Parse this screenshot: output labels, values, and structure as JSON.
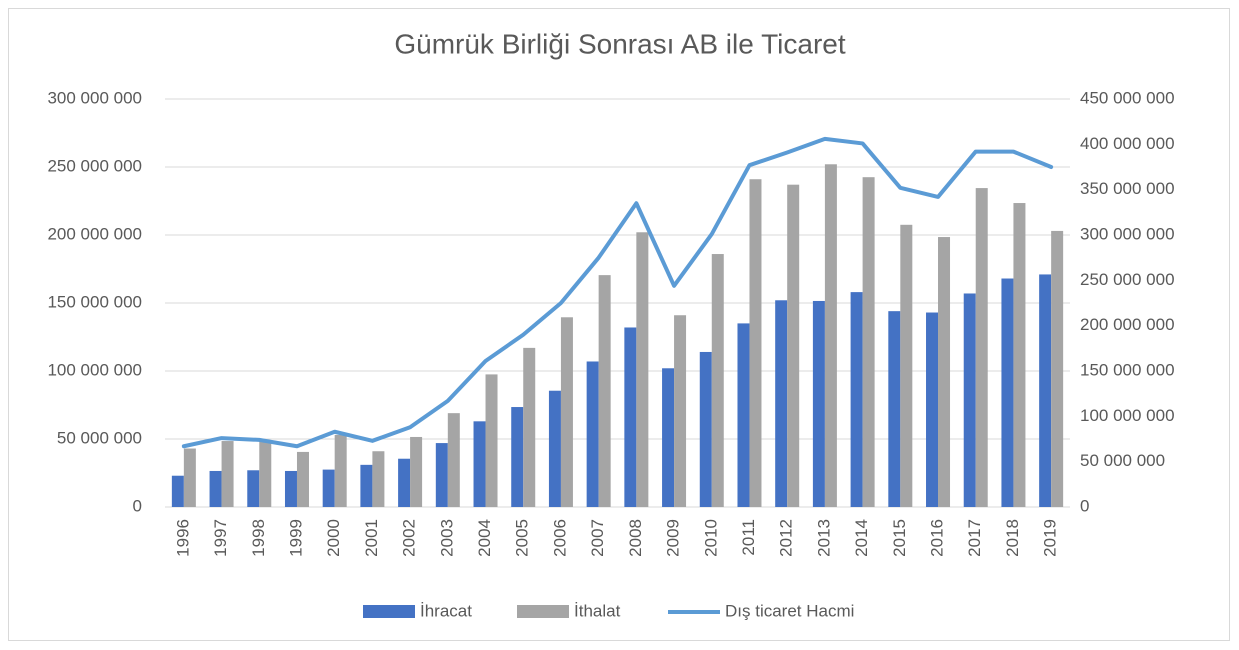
{
  "chart_data": {
    "type": "bar-line",
    "title": "Gümrük Birliği Sonrası AB ile Ticaret",
    "categories": [
      "1996",
      "1997",
      "1998",
      "1999",
      "2000",
      "2001",
      "2002",
      "2003",
      "2004",
      "2005",
      "2006",
      "2007",
      "2008",
      "2009",
      "2010",
      "2011",
      "2012",
      "2013",
      "2014",
      "2015",
      "2016",
      "2017",
      "2018",
      "2019"
    ],
    "series": [
      {
        "name": "İhracat",
        "color": "#4472c4",
        "type": "bar",
        "values": [
          23000000,
          26500000,
          27000000,
          26500000,
          27500000,
          31000000,
          35500000,
          47000000,
          63000000,
          73500000,
          85500000,
          107000000,
          132000000,
          102000000,
          114000000,
          135000000,
          152000000,
          151500000,
          158000000,
          144000000,
          143000000,
          157000000,
          168000000,
          171000000
        ]
      },
      {
        "name": "İthalat",
        "color": "#a5a5a5",
        "type": "bar",
        "values": [
          43000000,
          48500000,
          48500000,
          40500000,
          53000000,
          41000000,
          51500000,
          69000000,
          97500000,
          117000000,
          139500000,
          170500000,
          202000000,
          141000000,
          186000000,
          241000000,
          237000000,
          252000000,
          242500000,
          207500000,
          198500000,
          234500000,
          223500000,
          203000000
        ]
      },
      {
        "name": "Dış ticaret Hacmi",
        "color": "#5b9bd5",
        "type": "line",
        "axis": "y2",
        "values": [
          67000000,
          76000000,
          74000000,
          67000000,
          83000000,
          73000000,
          88000000,
          117000000,
          161000000,
          190000000,
          225000000,
          275000000,
          335000000,
          244000000,
          301000000,
          377000000,
          391000000,
          406000000,
          401000000,
          352000000,
          342000000,
          392000000,
          392000000,
          375000000
        ]
      }
    ],
    "ylim": [
      0,
      300000000
    ],
    "yticks": [
      0,
      {
        "value": 50000000,
        "label": "50 000 000"
      },
      {
        "value": 100000000,
        "label": "100 000 000"
      },
      {
        "value": 150000000,
        "label": "150 000 000"
      },
      {
        "value": 200000000,
        "label": "200 000 000"
      },
      {
        "value": 250000000,
        "label": "250 000 000"
      },
      {
        "value": 300000000,
        "label": "300 000 000"
      }
    ],
    "y2lim": [
      0,
      450000000
    ],
    "y2ticks": [
      0,
      {
        "value": 50000000,
        "label": "50 000 000"
      },
      {
        "value": 100000000,
        "label": "100 000 000"
      },
      {
        "value": 150000000,
        "label": "150 000 000"
      },
      {
        "value": 200000000,
        "label": "200 000 000"
      },
      {
        "value": 250000000,
        "label": "250 000 000"
      },
      {
        "value": 300000000,
        "label": "300 000 000"
      },
      {
        "value": 350000000,
        "label": "350 000 000"
      },
      {
        "value": 400000000,
        "label": "400 000 000"
      },
      {
        "value": 450000000,
        "label": "450 000 000"
      }
    ],
    "grid": true,
    "legend": "bottom"
  }
}
